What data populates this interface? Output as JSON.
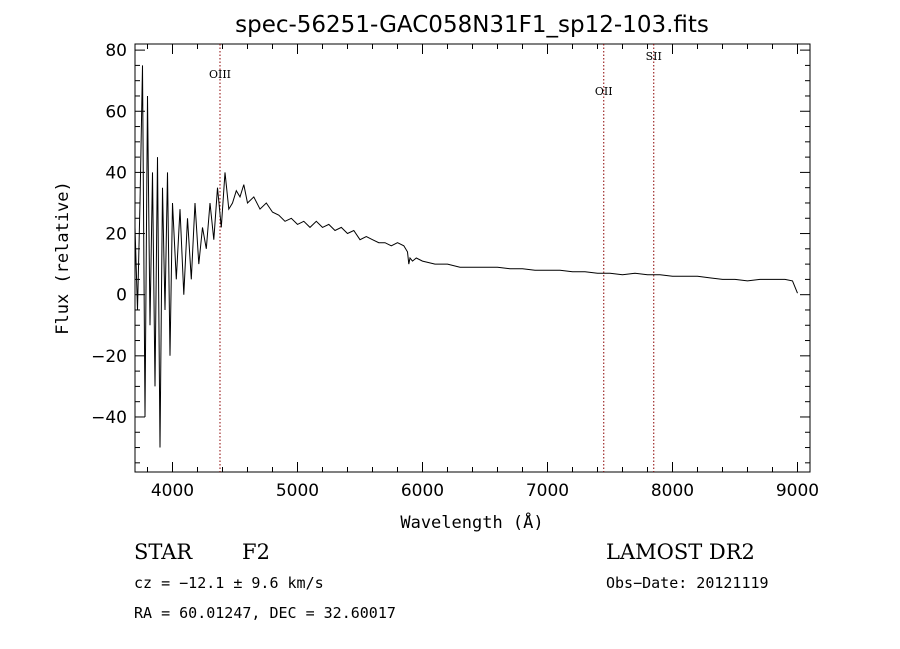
{
  "chart_data": {
    "type": "line",
    "title": "spec-56251-GAC058N31F1_sp12-103.fits",
    "xlabel": "Wavelength (Å)",
    "ylabel": "Flux (relative)",
    "xlim": [
      3700,
      9100
    ],
    "ylim": [
      -58,
      82
    ],
    "x_ticks": [
      4000,
      5000,
      6000,
      7000,
      8000,
      9000
    ],
    "x_tick_labels": [
      "4000",
      "5000",
      "6000",
      "7000",
      "8000",
      "9000"
    ],
    "y_ticks": [
      -40,
      -20,
      0,
      20,
      40,
      60,
      80
    ],
    "y_tick_labels": [
      "−40",
      "−20",
      "0",
      "20",
      "40",
      "60",
      "80"
    ],
    "grid": false,
    "series_color": "#000000",
    "spectrum": {
      "x": [
        3700,
        3720,
        3740,
        3760,
        3780,
        3800,
        3820,
        3840,
        3860,
        3880,
        3900,
        3920,
        3940,
        3960,
        3980,
        4000,
        4030,
        4060,
        4090,
        4120,
        4150,
        4180,
        4210,
        4240,
        4270,
        4300,
        4330,
        4360,
        4390,
        4420,
        4450,
        4480,
        4510,
        4540,
        4570,
        4600,
        4650,
        4700,
        4750,
        4800,
        4850,
        4900,
        4950,
        5000,
        5050,
        5100,
        5150,
        5200,
        5250,
        5300,
        5350,
        5400,
        5450,
        5500,
        5550,
        5600,
        5650,
        5700,
        5750,
        5800,
        5850,
        5880,
        5890,
        5900,
        5920,
        5950,
        6000,
        6050,
        6100,
        6200,
        6300,
        6400,
        6500,
        6600,
        6700,
        6800,
        6900,
        7000,
        7100,
        7200,
        7300,
        7400,
        7500,
        7600,
        7700,
        7800,
        7900,
        8000,
        8100,
        8200,
        8300,
        8400,
        8500,
        8600,
        8700,
        8800,
        8900,
        8960,
        9000
      ],
      "y": [
        22,
        -5,
        30,
        75,
        -40,
        65,
        -10,
        40,
        -30,
        45,
        -50,
        35,
        -5,
        40,
        -20,
        30,
        5,
        28,
        0,
        25,
        5,
        30,
        10,
        22,
        15,
        30,
        18,
        35,
        22,
        40,
        28,
        30,
        34,
        32,
        36,
        30,
        32,
        28,
        30,
        27,
        26,
        24,
        25,
        23,
        24,
        22,
        24,
        22,
        23,
        21,
        22,
        20,
        21,
        18,
        19,
        18,
        17,
        17,
        16,
        17,
        16,
        14,
        10,
        12,
        11,
        12,
        11,
        10.5,
        10,
        10,
        9,
        9,
        9,
        9,
        8.5,
        8.5,
        8,
        8,
        8,
        7.5,
        7.5,
        7,
        7,
        6.5,
        7,
        6.5,
        6.5,
        6,
        6,
        6,
        5.5,
        5,
        5,
        4.5,
        5,
        5,
        5,
        4.5,
        0.5
      ]
    },
    "lines": [
      {
        "label": "OIII",
        "x": 4380
      },
      {
        "label": "OII",
        "x": 7450
      },
      {
        "label": "SII",
        "x": 7850
      }
    ],
    "line_color": "#8b0000"
  },
  "info": {
    "object_class": "STAR",
    "subclass": "F2",
    "survey": "LAMOST DR2",
    "redshift": "cz = −12.1 ± 9.6 km/s",
    "obs_date": "Obs−Date: 20121119",
    "coords": "RA =  60.01247, DEC =  32.60017"
  }
}
